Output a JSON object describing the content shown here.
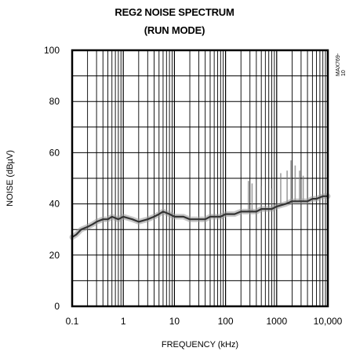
{
  "chart_data": {
    "type": "line",
    "title": "REG2 NOISE SPECTRUM",
    "subtitle": "(RUN MODE)",
    "xlabel": "FREQUENCY (kHz)",
    "ylabel": "NOISE (dBµV)",
    "xscale": "log",
    "xlim": [
      0.1,
      10000
    ],
    "ylim": [
      0,
      100
    ],
    "x_ticks": [
      "0.1",
      "1",
      "10",
      "100",
      "1000",
      "10,000"
    ],
    "y_ticks": [
      "0",
      "20",
      "40",
      "60",
      "80",
      "100"
    ],
    "figure_code": "MAX769-10",
    "grid": true,
    "series": [
      {
        "x": [
          0.1,
          0.12,
          0.15,
          0.2,
          0.25,
          0.3,
          0.4,
          0.5,
          0.6,
          0.8,
          1,
          1.5,
          2,
          3,
          4,
          5,
          6,
          8,
          10,
          15,
          20,
          30,
          40,
          50,
          60,
          80,
          100,
          150,
          200,
          300,
          400,
          500,
          600,
          800,
          1000,
          1500,
          2000,
          3000,
          4000,
          5000,
          6000,
          8000,
          10000
        ],
        "y": [
          27,
          28,
          30,
          31,
          32,
          33,
          34,
          34,
          35,
          34,
          35,
          34,
          33,
          34,
          35,
          36,
          37,
          36,
          35,
          35,
          34,
          34,
          34,
          35,
          35,
          35,
          36,
          36,
          37,
          37,
          37,
          38,
          38,
          38,
          39,
          40,
          41,
          41,
          41,
          42,
          42,
          43,
          43
        ]
      }
    ]
  }
}
